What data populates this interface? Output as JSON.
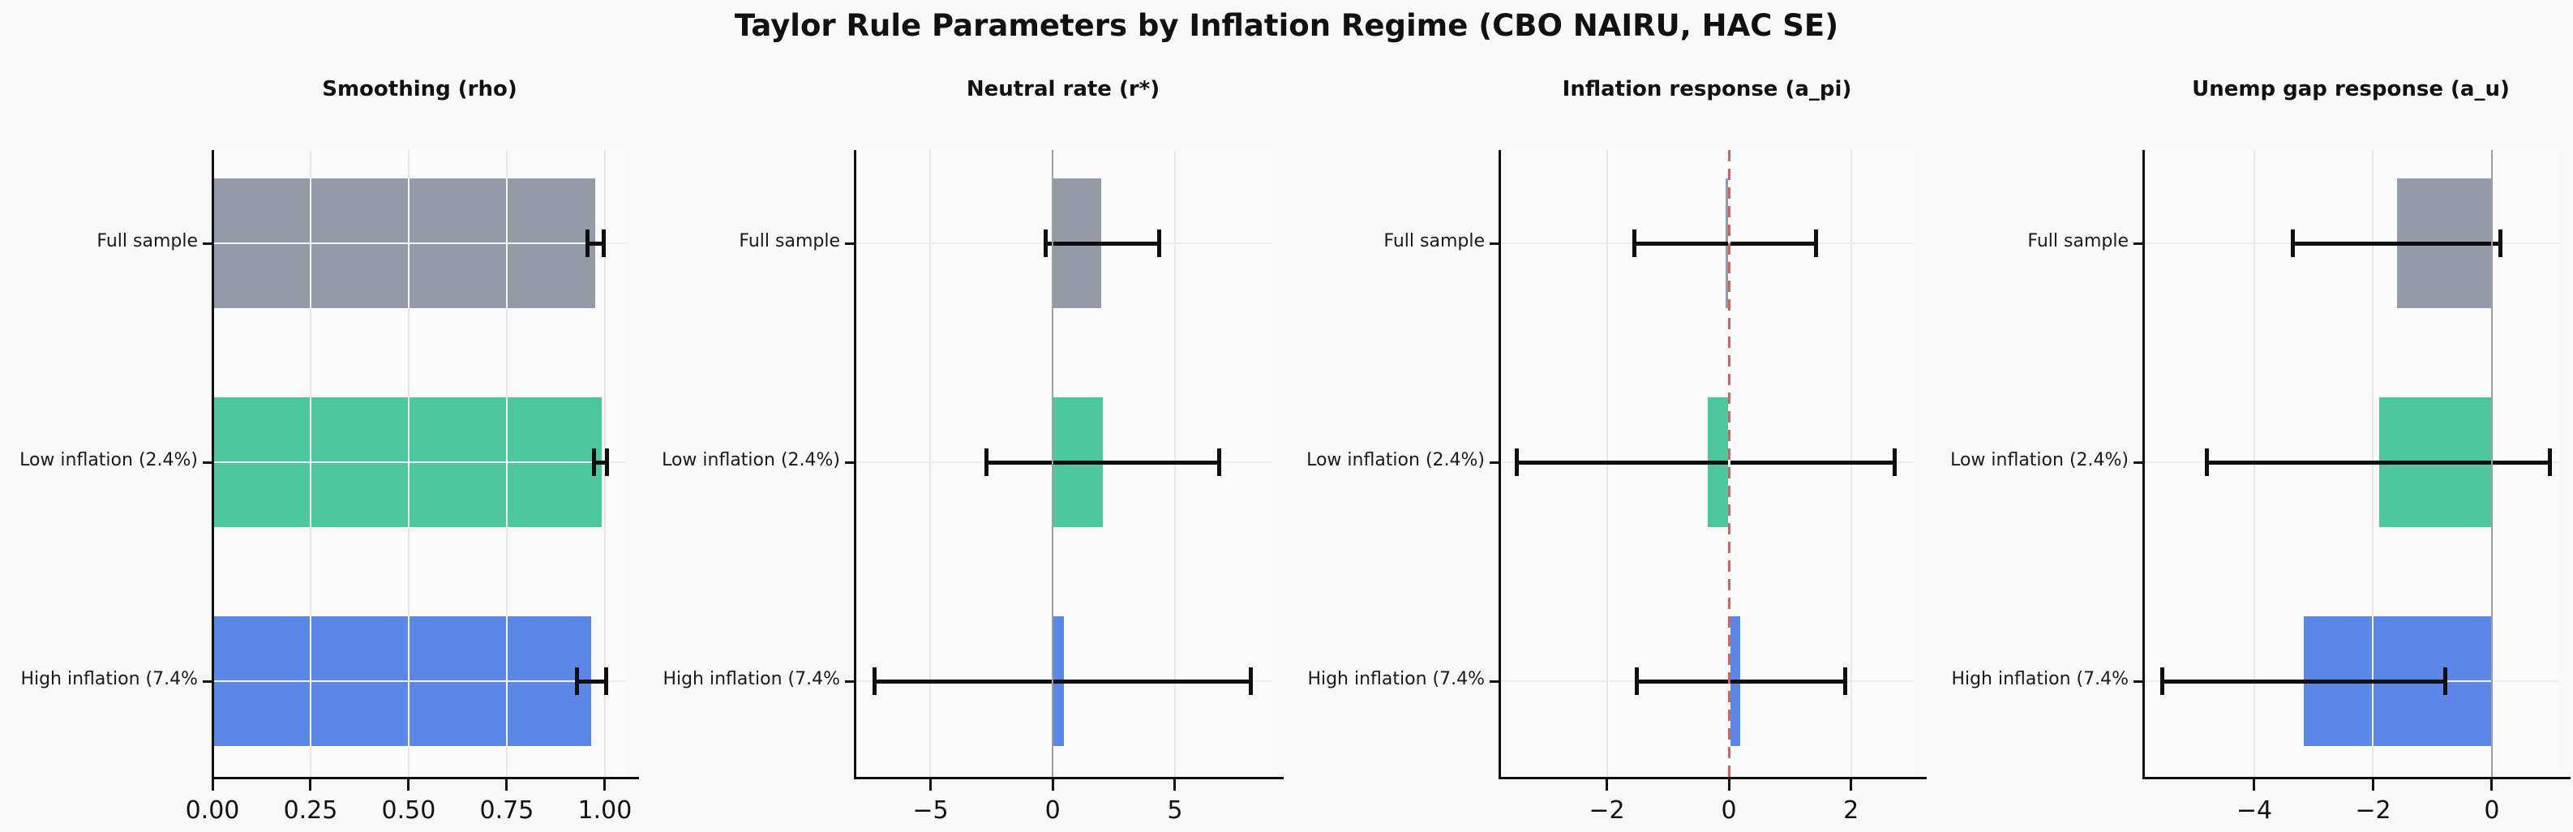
{
  "title": "Taylor Rule Parameters by Inflation Regime (CBO NAIRU, HAC SE)",
  "categories": [
    {
      "label": "Full sample",
      "color": "#949AA6"
    },
    {
      "label": "Low inflation (2.4%)",
      "color": "#4CC79E"
    },
    {
      "label": "High inflation (7.4%",
      "color": "#5B88E8"
    }
  ],
  "colors": {
    "background": "#f8f8f8",
    "plot_background": "#fafafa",
    "grid": "#e6e8eb",
    "error_bar": "#0f0f0f",
    "zero_line": "#9aa0a8",
    "reference_line": "#d06262"
  },
  "chart_data": [
    {
      "type": "bar",
      "orientation": "horizontal",
      "title": "Smoothing (rho)",
      "xlim": [
        0,
        1.056
      ],
      "grid": true,
      "zero_line": false,
      "ref_line_at": null,
      "xticks": [
        {
          "value": 0.0,
          "label": "0.00"
        },
        {
          "value": 0.25,
          "label": "0.25"
        },
        {
          "value": 0.5,
          "label": "0.50"
        },
        {
          "value": 0.75,
          "label": "0.75"
        },
        {
          "value": 1.0,
          "label": "1.00"
        }
      ],
      "series": [
        {
          "category": "Full sample",
          "value": 0.975,
          "ci": [
            0.955,
            0.998
          ]
        },
        {
          "category": "Low inflation (2.4%)",
          "value": 0.992,
          "ci": [
            0.973,
            1.006
          ]
        },
        {
          "category": "High inflation (7.4%",
          "value": 0.965,
          "ci": [
            0.928,
            1.003
          ]
        }
      ]
    },
    {
      "type": "bar",
      "orientation": "horizontal",
      "title": "Neutral rate (r*)",
      "xlim": [
        -8.1,
        8.95
      ],
      "grid": true,
      "zero_line": true,
      "ref_line_at": null,
      "xticks": [
        {
          "value": -5,
          "label": "−5"
        },
        {
          "value": 0,
          "label": "0"
        },
        {
          "value": 5,
          "label": "5"
        }
      ],
      "series": [
        {
          "category": "Full sample",
          "value": 2.0,
          "ci": [
            -0.3,
            4.35
          ]
        },
        {
          "category": "Low inflation (2.4%)",
          "value": 2.05,
          "ci": [
            -2.7,
            6.8
          ]
        },
        {
          "category": "High inflation (7.4%",
          "value": 0.45,
          "ci": [
            -7.3,
            8.1
          ]
        }
      ]
    },
    {
      "type": "bar",
      "orientation": "horizontal",
      "title": "Inflation response (a_pi)",
      "xlim": [
        -3.76,
        3.04
      ],
      "grid": true,
      "zero_line": false,
      "ref_line_at": 0,
      "xticks": [
        {
          "value": -2,
          "label": "−2"
        },
        {
          "value": 0,
          "label": "0"
        },
        {
          "value": 2,
          "label": "2"
        }
      ],
      "series": [
        {
          "category": "Full sample",
          "value": -0.06,
          "ci": [
            -1.55,
            1.42
          ]
        },
        {
          "category": "Low inflation (2.4%)",
          "value": -0.35,
          "ci": [
            -3.47,
            2.71
          ]
        },
        {
          "category": "High inflation (7.4%",
          "value": 0.19,
          "ci": [
            -1.51,
            1.9
          ]
        }
      ]
    },
    {
      "type": "bar",
      "orientation": "horizontal",
      "title": "Unemp gap response (a_u)",
      "xlim": [
        -5.87,
        1.12
      ],
      "grid": true,
      "zero_line": true,
      "ref_line_at": null,
      "xticks": [
        {
          "value": -4,
          "label": "−4"
        },
        {
          "value": -2,
          "label": "−2"
        },
        {
          "value": 0,
          "label": "0"
        }
      ],
      "series": [
        {
          "category": "Full sample",
          "value": -1.6,
          "ci": [
            -3.35,
            0.14
          ]
        },
        {
          "category": "Low inflation (2.4%)",
          "value": -1.9,
          "ci": [
            -4.8,
            0.97
          ]
        },
        {
          "category": "High inflation (7.4%",
          "value": -3.17,
          "ci": [
            -5.55,
            -0.79
          ]
        }
      ]
    }
  ]
}
